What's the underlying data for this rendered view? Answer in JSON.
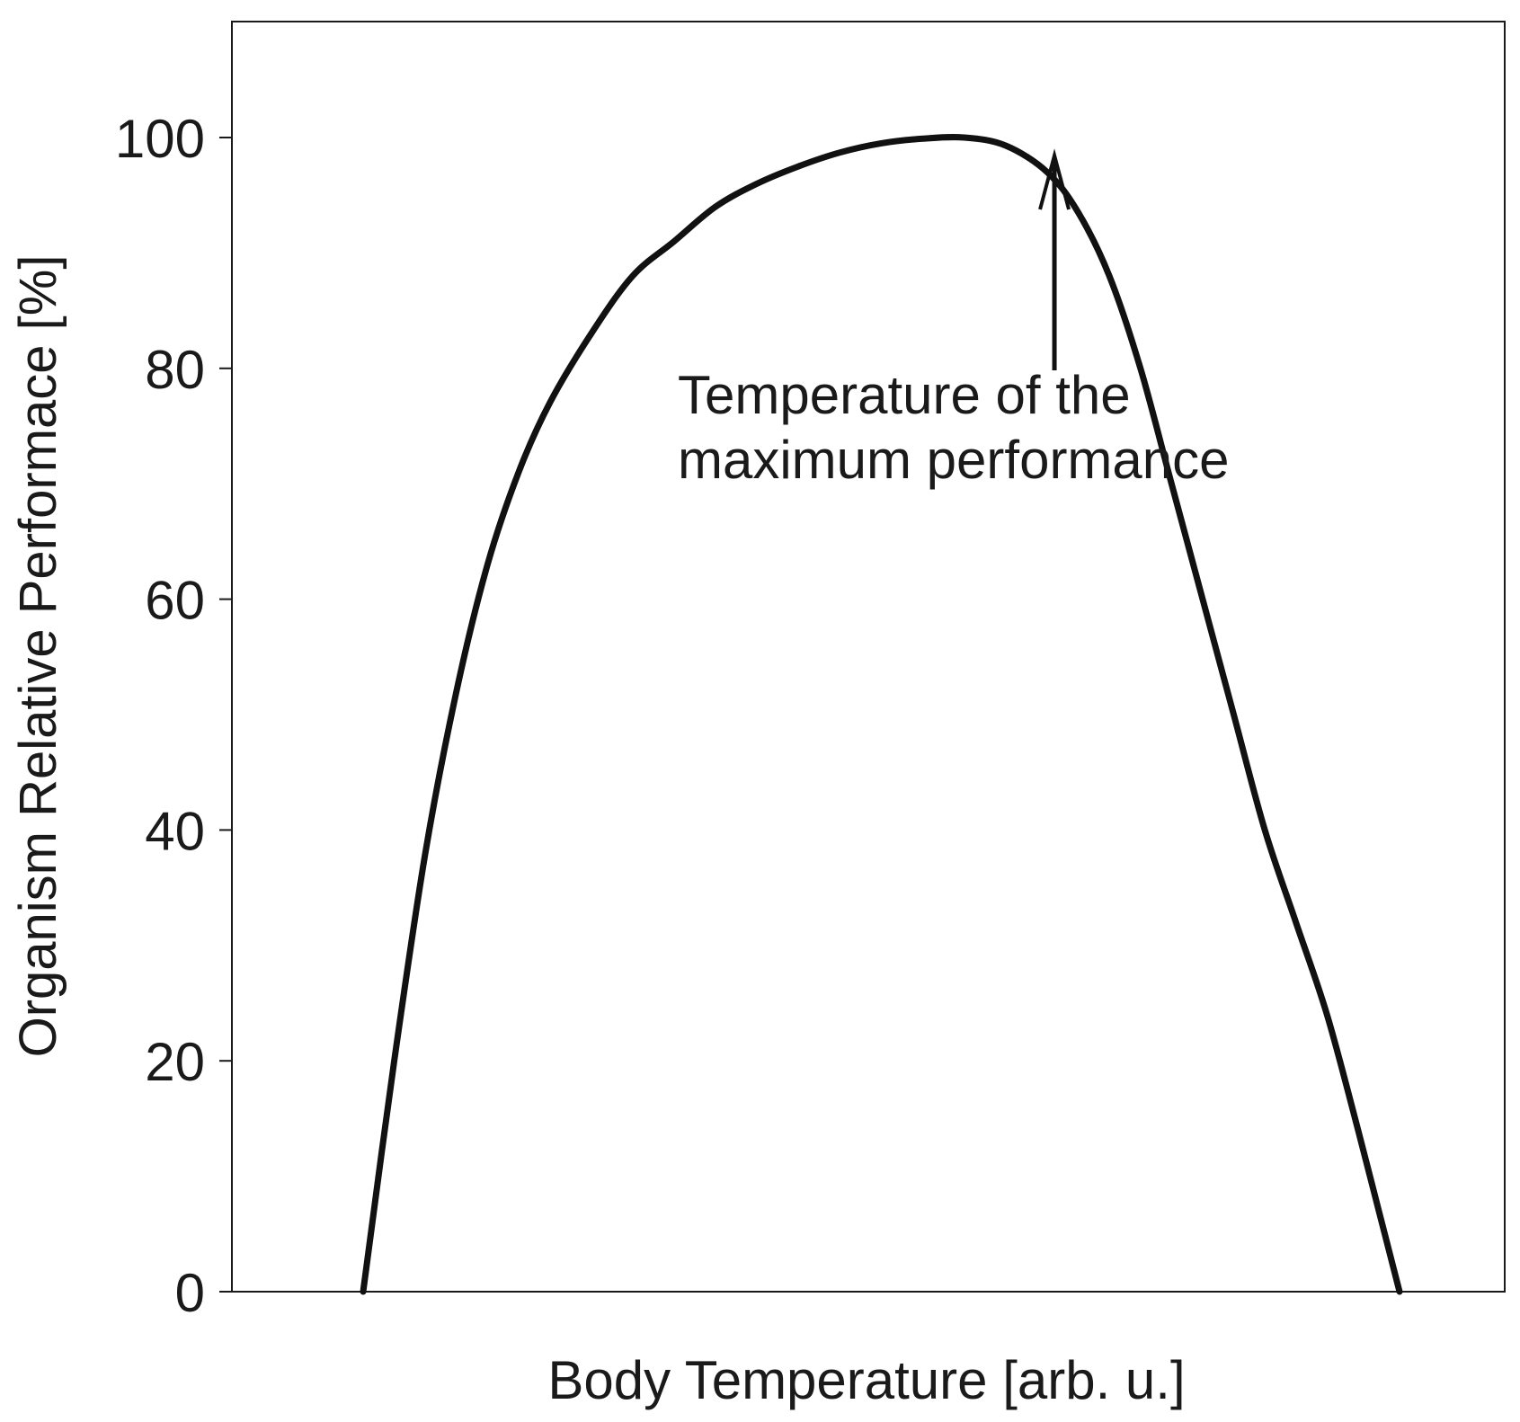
{
  "chart_data": {
    "type": "line",
    "title": "",
    "xlabel": "Body Temperature [arb. u.]",
    "ylabel": "Organism Relative Performace [%]",
    "ylim": [
      0,
      110
    ],
    "y_ticks": [
      0,
      20,
      40,
      60,
      80,
      100
    ],
    "y_tick_labels": [
      "0",
      "20",
      "40",
      "60",
      "80",
      "100"
    ],
    "x_ticks_shown": false,
    "grid": false,
    "legend": "none",
    "series": [
      {
        "color": "#111111",
        "x": [
          0.0,
          0.03,
          0.06,
          0.09,
          0.12,
          0.15,
          0.18,
          0.22,
          0.26,
          0.3,
          0.34,
          0.38,
          0.42,
          0.46,
          0.5,
          0.54,
          0.58,
          0.62,
          0.66,
          0.69,
          0.72,
          0.75,
          0.78,
          0.81,
          0.84,
          0.87,
          0.9,
          0.93,
          0.96,
          0.98,
          1.0
        ],
        "y": [
          0,
          20,
          38,
          52,
          63,
          71,
          77,
          83,
          88,
          91,
          94,
          96,
          97.5,
          98.7,
          99.5,
          99.9,
          100,
          99.3,
          97,
          93.5,
          88,
          80,
          70,
          60,
          50,
          40,
          32,
          24,
          14,
          7,
          0
        ]
      }
    ],
    "annotations": [
      {
        "text_lines": [
          "Temperature of the",
          "maximum performance"
        ],
        "arrow_to": {
          "x": 0.667,
          "y": 100
        }
      }
    ]
  }
}
